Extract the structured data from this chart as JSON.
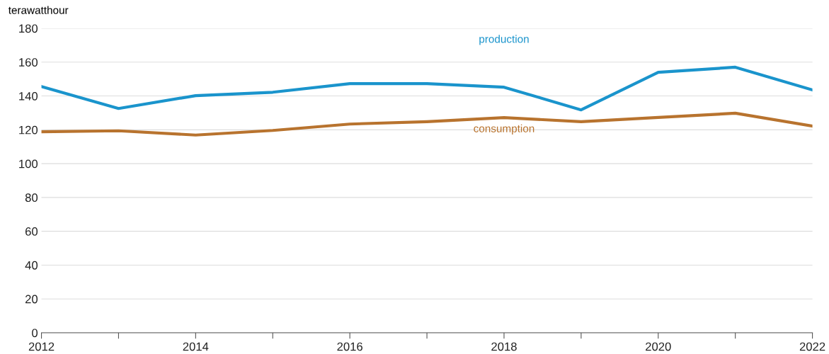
{
  "chart_data": {
    "type": "line",
    "ylabel": "terawatthour",
    "x": [
      2012,
      2013,
      2014,
      2015,
      2016,
      2017,
      2018,
      2019,
      2020,
      2021,
      2022
    ],
    "series": [
      {
        "name": "production",
        "color": "#1a94cc",
        "values": [
          145.6,
          132.6,
          140.2,
          142.2,
          147.3,
          147.3,
          145.2,
          131.8,
          154,
          157,
          143.6
        ]
      },
      {
        "name": "consumption",
        "color": "#b8732e",
        "values": [
          118.8,
          119.4,
          116.9,
          119.6,
          123.4,
          124.8,
          127.2,
          124.8,
          127.3,
          129.8,
          122.2
        ]
      }
    ],
    "xlim": [
      2012,
      2022
    ],
    "xticks": [
      2012,
      {
        "value": 2013,
        "label": null
      },
      2014,
      {
        "value": 2015,
        "label": null
      },
      2016,
      {
        "value": 2017,
        "label": null
      },
      2018,
      {
        "value": 2019,
        "label": null
      },
      2020,
      {
        "value": 2021,
        "label": null
      },
      2022
    ],
    "ylim": [
      0,
      180
    ],
    "yticks": [
      0,
      20,
      40,
      60,
      80,
      100,
      120,
      140,
      160,
      180
    ],
    "grid": "y",
    "legend": false,
    "marker": "none",
    "line_style": "solid"
  }
}
